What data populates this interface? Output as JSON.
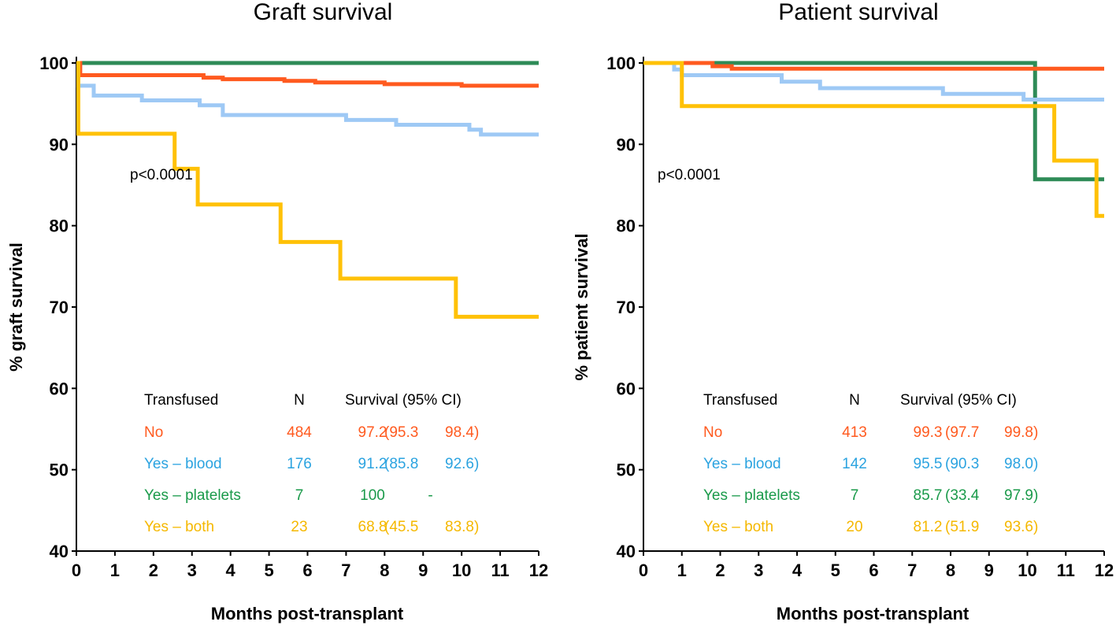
{
  "chart_data": [
    {
      "type": "line",
      "title": "Graft survival",
      "xlabel": "Months post-transplant",
      "ylabel": "% graft survival",
      "xlim": [
        0,
        12
      ],
      "ylim": [
        40,
        100
      ],
      "xticks": [
        0,
        1,
        2,
        3,
        4,
        5,
        6,
        7,
        8,
        9,
        10,
        11,
        12
      ],
      "yticks": [
        40,
        50,
        60,
        70,
        80,
        90,
        100
      ],
      "annotation": "p<0.0001",
      "series": [
        {
          "name": "Yes – platelets",
          "color": "#2e8b57",
          "x": [
            0,
            12
          ],
          "y": [
            100,
            100
          ]
        },
        {
          "name": "No",
          "color": "#ff5a1f",
          "x": [
            0,
            0.1,
            3.3,
            3.8,
            5.4,
            6.2,
            8.0,
            10.0,
            12
          ],
          "y": [
            100,
            98.5,
            98.2,
            98.0,
            97.8,
            97.6,
            97.4,
            97.2,
            97.2
          ]
        },
        {
          "name": "Yes – blood",
          "color": "#9ec9f5",
          "x": [
            0,
            0.05,
            0.45,
            1.7,
            3.2,
            3.8,
            7.0,
            8.3,
            10.2,
            10.5,
            12
          ],
          "y": [
            100,
            97.2,
            96.0,
            95.4,
            94.8,
            93.6,
            93.0,
            92.4,
            91.8,
            91.2,
            91.2
          ]
        },
        {
          "name": "Yes – both",
          "color": "#ffc107",
          "x": [
            0,
            0.05,
            2.55,
            3.15,
            5.3,
            6.85,
            9.85,
            12
          ],
          "y": [
            100,
            91.3,
            87.0,
            82.6,
            78.0,
            73.5,
            68.8,
            68.8
          ]
        }
      ],
      "table": {
        "headers": [
          "Transfused",
          "N",
          "Survival (95% CI)"
        ],
        "rows": [
          {
            "label": "No",
            "n": "484",
            "surv": "97.2",
            "lo": "(95.3",
            "hi": "98.4)",
            "color": "#ff5a1f"
          },
          {
            "label": "Yes – blood",
            "n": "176",
            "surv": "91.2",
            "lo": "(85.8",
            "hi": "92.6)",
            "color": "#2ba3e0"
          },
          {
            "label": "Yes – platelets",
            "n": "7",
            "surv": "100",
            "lo": "-",
            "hi": "",
            "color": "#1a9a4a"
          },
          {
            "label": "Yes – both",
            "n": "23",
            "surv": "68.8",
            "lo": "(45.5",
            "hi": "83.8)",
            "color": "#f5b800"
          }
        ]
      }
    },
    {
      "type": "line",
      "title": "Patient survival",
      "xlabel": "Months post-transplant",
      "ylabel": "% patient survival",
      "xlim": [
        0,
        12
      ],
      "ylim": [
        40,
        100
      ],
      "xticks": [
        0,
        1,
        2,
        3,
        4,
        5,
        6,
        7,
        8,
        9,
        10,
        11,
        12
      ],
      "yticks": [
        40,
        50,
        60,
        70,
        80,
        90,
        100
      ],
      "annotation": "p<0.0001",
      "series": [
        {
          "name": "Yes – platelets",
          "color": "#2e8b57",
          "x": [
            0,
            10.2,
            12
          ],
          "y": [
            100,
            85.7,
            85.7
          ]
        },
        {
          "name": "No",
          "color": "#ff5a1f",
          "x": [
            0,
            1.8,
            2.3,
            12
          ],
          "y": [
            100,
            99.6,
            99.3,
            99.3
          ]
        },
        {
          "name": "Yes – blood",
          "color": "#9ec9f5",
          "x": [
            0,
            0.8,
            1.0,
            3.6,
            4.6,
            7.8,
            9.9,
            12
          ],
          "y": [
            100,
            99.2,
            98.5,
            97.7,
            96.9,
            96.2,
            95.5,
            95.5
          ]
        },
        {
          "name": "Yes – both",
          "color": "#ffc107",
          "x": [
            0,
            1.0,
            10.7,
            11.8,
            12
          ],
          "y": [
            100,
            94.7,
            88.0,
            81.2,
            81.2
          ]
        }
      ],
      "table": {
        "headers": [
          "Transfused",
          "N",
          "Survival (95% CI)"
        ],
        "rows": [
          {
            "label": "No",
            "n": "413",
            "surv": "99.3",
            "lo": "(97.7",
            "hi": "99.8)",
            "color": "#ff5a1f"
          },
          {
            "label": "Yes – blood",
            "n": "142",
            "surv": "95.5",
            "lo": "(90.3",
            "hi": "98.0)",
            "color": "#2ba3e0"
          },
          {
            "label": "Yes – platelets",
            "n": "7",
            "surv": "85.7",
            "lo": "(33.4",
            "hi": "97.9)",
            "color": "#1a9a4a"
          },
          {
            "label": "Yes – both",
            "n": "20",
            "surv": "81.2",
            "lo": "(51.9",
            "hi": "93.6)",
            "color": "#f5b800"
          }
        ]
      }
    }
  ]
}
